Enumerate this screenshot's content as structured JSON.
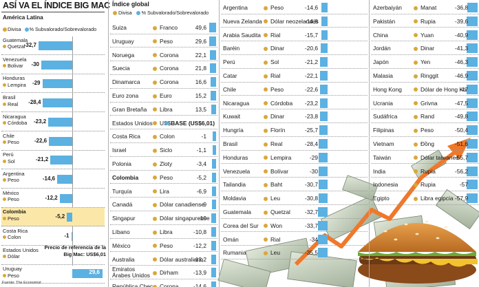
{
  "colors": {
    "bar": "#5bb1e1",
    "currency_dot": "#d9a73b",
    "highlight": "#fbe8a9",
    "arrow": "#f0782a"
  },
  "title": "ASÍ VA EL ÍNDICE BIG MAC",
  "latam": {
    "subtitle": "América Latina",
    "legend_currency": "Divisa",
    "legend_value": "% Subvalorado/Sobrevalorado",
    "reference": "Precio de referencia de la Big Mac: US$6,01",
    "source": "Fuente: The Economist"
  },
  "global": {
    "title": "Índice global",
    "legend_currency": "Divisa",
    "legend_value": "% Subvalorado/Sobrevalorado",
    "base_label": "BASE (US$6,01)"
  },
  "chart_data": [
    {
      "type": "bar",
      "title": "América Latina",
      "series": [
        {
          "name": "% Subvalorado/Sobrevalorado",
          "values": [
            -32.7,
            -30,
            -29,
            -28.4,
            -23.2,
            -22.6,
            -21.2,
            -14.6,
            -12.2,
            -5.2,
            -1,
            29.6
          ]
        }
      ],
      "categories": [
        "Guatemala",
        "Venezuela",
        "Honduras",
        "Brasil",
        "Nicaragua",
        "Chile",
        "Perú",
        "Argentina",
        "México",
        "Colombia",
        "Costa Rica",
        "Uruguay"
      ],
      "rows": [
        {
          "country": "Guatemala",
          "currency": "Quetzal",
          "value": -32.7,
          "label": "-32,7"
        },
        {
          "country": "Venezuela",
          "currency": "Bolivar",
          "value": -30,
          "label": "-30"
        },
        {
          "country": "Honduras",
          "currency": "Lempira",
          "value": -29,
          "label": "-29"
        },
        {
          "country": "Brasil",
          "currency": "Real",
          "value": -28.4,
          "label": "-28,4"
        },
        {
          "country": "Nicaragua",
          "currency": "Córdoba",
          "value": -23.2,
          "label": "-23,2"
        },
        {
          "country": "Chile",
          "currency": "Peso",
          "value": -22.6,
          "label": "-22,6"
        },
        {
          "country": "Perú",
          "currency": "Sol",
          "value": -21.2,
          "label": "-21,2"
        },
        {
          "country": "Argentina",
          "currency": "Peso",
          "value": -14.6,
          "label": "-14,6"
        },
        {
          "country": "México",
          "currency": "Peso",
          "value": -12.2,
          "label": "-12,2"
        },
        {
          "country": "Colombia",
          "currency": "Peso",
          "value": -5.2,
          "label": "-5,2",
          "highlight": true
        },
        {
          "country": "Costa Rica",
          "currency": "Colon",
          "value": -1,
          "label": "-1"
        },
        {
          "country": "Estados Unidos",
          "currency": "Dólar",
          "value": 0,
          "label": ""
        },
        {
          "country": "Uruguay",
          "currency": "Peso",
          "value": 29.6,
          "label": "29,6"
        }
      ]
    },
    {
      "type": "table",
      "title": "Índice global",
      "columns": [
        [
          {
            "country": "Suiza",
            "currency": "Franco",
            "value": 49.6,
            "label": "49,6"
          },
          {
            "country": "Uruguay",
            "currency": "Peso",
            "value": 29.6,
            "label": "29,6"
          },
          {
            "country": "Noruega",
            "currency": "Corona",
            "value": 22.1,
            "label": "22,1"
          },
          {
            "country": "Suecia",
            "currency": "Corona",
            "value": 21.8,
            "label": "21,8"
          },
          {
            "country": "Dinamarca",
            "currency": "Corona",
            "value": 16.6,
            "label": "16,6"
          },
          {
            "country": "Euro zona",
            "currency": "Euro",
            "value": 15.2,
            "label": "15,2"
          },
          {
            "country": "Gran Bretaña",
            "currency": "Libra",
            "value": 13.5,
            "label": "13,5"
          },
          {
            "country": "Estados Unidos",
            "currency": "US$",
            "value": 0,
            "label": "BASE (US$6,01)",
            "base": true
          },
          {
            "country": "Costa Rica",
            "currency": "Colon",
            "value": -1,
            "label": "-1"
          },
          {
            "country": "Israel",
            "currency": "Siclo",
            "value": -1.1,
            "label": "-1,1"
          },
          {
            "country": "Polonia",
            "currency": "Zloty",
            "value": -3.4,
            "label": "-3,4"
          },
          {
            "country": "Colombia",
            "currency": "Peso",
            "value": -5.2,
            "label": "-5,2",
            "bold": true
          },
          {
            "country": "Turquía",
            "currency": "Lira",
            "value": -6.9,
            "label": "-6,9"
          },
          {
            "country": "Canadá",
            "currency": "Dólar canadiense",
            "value": -9,
            "label": "-9"
          },
          {
            "country": "Singapur",
            "currency": "Dólar singapurense",
            "value": -10,
            "label": "-10"
          },
          {
            "country": "Líbano",
            "currency": "Libra",
            "value": -10.8,
            "label": "-10,8"
          },
          {
            "country": "México",
            "currency": "Peso",
            "value": -12.2,
            "label": "-12,2"
          },
          {
            "country": "Australia",
            "currency": "Dólar australiano",
            "value": -13.2,
            "label": "-13,2"
          },
          {
            "country": "Emiratos Árabes Unidos",
            "currency": "Dirham",
            "value": -13.9,
            "label": "-13,9",
            "wrap": true
          },
          {
            "country": "República Checa",
            "currency": "Corona",
            "value": -14.6,
            "label": "-14,6"
          }
        ],
        [
          {
            "country": "Argentina",
            "currency": "Peso",
            "value": -14.6,
            "label": "-14,6"
          },
          {
            "country": "Nueva Zelanda",
            "currency": "Dólar neozelandés",
            "value": -14.8,
            "label": "-14,8"
          },
          {
            "country": "Arabia Saudita",
            "currency": "Rial",
            "value": -15.7,
            "label": "-15,7"
          },
          {
            "country": "Baréin",
            "currency": "Dinar",
            "value": -20.6,
            "label": "-20,6"
          },
          {
            "country": "Perú",
            "currency": "Sol",
            "value": -21.2,
            "label": "-21,2"
          },
          {
            "country": "Catar",
            "currency": "Rial",
            "value": -22.1,
            "label": "-22,1"
          },
          {
            "country": "Chile",
            "currency": "Peso",
            "value": -22.6,
            "label": "-22,6"
          },
          {
            "country": "Nicaragua",
            "currency": "Córdoba",
            "value": -23.2,
            "label": "-23,2"
          },
          {
            "country": "Kuwait",
            "currency": "Dinar",
            "value": -23.8,
            "label": "-23,8"
          },
          {
            "country": "Hungría",
            "currency": "Florín",
            "value": -25.7,
            "label": "-25,7"
          },
          {
            "country": "Brasil",
            "currency": "Real",
            "value": -28.4,
            "label": "-28,4"
          },
          {
            "country": "Honduras",
            "currency": "Lempira",
            "value": -29,
            "label": "-29"
          },
          {
            "country": "Venezuela",
            "currency": "Bolívar",
            "value": -30,
            "label": "-30"
          },
          {
            "country": "Tailandia",
            "currency": "Baht",
            "value": -30.7,
            "label": "-30,7"
          },
          {
            "country": "Moldavia",
            "currency": "Leu",
            "value": -30.8,
            "label": "-30,8"
          },
          {
            "country": "Guatemala",
            "currency": "Quetzal",
            "value": -32.7,
            "label": "-32,7"
          },
          {
            "country": "Corea del Sur",
            "currency": "Won",
            "value": -33.7,
            "label": "-33,7"
          },
          {
            "country": "Omán",
            "currency": "Rial",
            "value": -34,
            "label": "-34"
          },
          {
            "country": "Rumania",
            "currency": "Leu",
            "value": -35.5,
            "label": "-35,5"
          }
        ],
        [
          {
            "country": "Azerbaiyán",
            "currency": "Manat",
            "value": -36.8,
            "label": "-36,8"
          },
          {
            "country": "Pakistán",
            "currency": "Rupia",
            "value": -39.6,
            "label": "-39,6"
          },
          {
            "country": "China",
            "currency": "Yuan",
            "value": -40.9,
            "label": "-40,9"
          },
          {
            "country": "Jordán",
            "currency": "Dinar",
            "value": -41.3,
            "label": "-41,3"
          },
          {
            "country": "Japón",
            "currency": "Yen",
            "value": -46.3,
            "label": "-46,3"
          },
          {
            "country": "Malasia",
            "currency": "Ringgit",
            "value": -46.9,
            "label": "-46,9"
          },
          {
            "country": "Hong Kong",
            "currency": "Dólar de Hong Kong",
            "value": -47,
            "label": "-47"
          },
          {
            "country": "Ucrania",
            "currency": "Grivna",
            "value": -47.5,
            "label": "-47,5"
          },
          {
            "country": "Sudáfrica",
            "currency": "Rand",
            "value": -49.8,
            "label": "-49,8"
          },
          {
            "country": "Filipinas",
            "currency": "Peso",
            "value": -50.4,
            "label": "-50,4"
          },
          {
            "country": "Vietnam",
            "currency": "Đồng",
            "value": -51.6,
            "label": "-51,6"
          },
          {
            "country": "Taiwán",
            "currency": "Dólar taiwanes",
            "value": -55.7,
            "label": "-55,7"
          },
          {
            "country": "India",
            "currency": "Rupia",
            "value": -56.2,
            "label": "-56,2"
          },
          {
            "country": "Indonesia",
            "currency": "Rupia",
            "value": -57,
            "label": "-57"
          },
          {
            "country": "Egipto",
            "currency": "Libra egipcia",
            "value": -57.9,
            "label": "-57,9"
          }
        ]
      ]
    }
  ]
}
